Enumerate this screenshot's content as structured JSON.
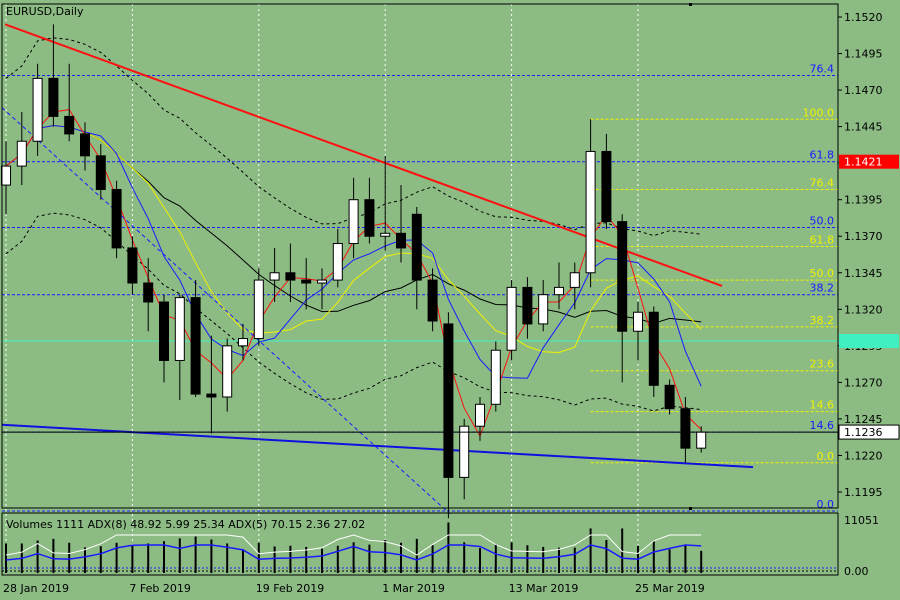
{
  "chart_data": {
    "type": "candlestick",
    "title": "EURUSD,Daily",
    "colors": {
      "background": "#8cbc84",
      "bull_body": "#ffffff",
      "bear_body": "#000000",
      "fib_blue": "#1a1aff",
      "fib_yellow": "#f0f000",
      "trendline_red": "#ff1010",
      "trendline_blue": "#1010e0",
      "ma_black": "#000000",
      "ma_yellow": "#f0f000",
      "ma_blue": "#1a1aff",
      "ma_red": "#ff1010",
      "price_marker_red": "#ff0000",
      "price_marker_cyan": "#40f0c0"
    },
    "y_axis": {
      "range": [
        1.1175,
        1.153
      ],
      "ticks": [
        "1.1520",
        "1.1495",
        "1.1470",
        "1.1445",
        "1.1420",
        "1.1395",
        "1.1370",
        "1.1345",
        "1.1320",
        "1.1295",
        "1.1270",
        "1.1245",
        "1.1220",
        "1.1195"
      ]
    },
    "x_axis": {
      "labels": [
        "28 Jan 2019",
        "7 Feb 2019",
        "19 Feb 2019",
        "1 Mar 2019",
        "13 Mar 2019",
        "25 Mar 2019"
      ]
    },
    "candles": [
      {
        "date": "28 Jan 2019",
        "o": 1.1405,
        "h": 1.1435,
        "l": 1.1385,
        "c": 1.1418
      },
      {
        "date": "29 Jan 2019",
        "o": 1.1418,
        "h": 1.1455,
        "l": 1.1405,
        "c": 1.1435
      },
      {
        "date": "30 Jan 2019",
        "o": 1.1435,
        "h": 1.1488,
        "l": 1.1425,
        "c": 1.1478
      },
      {
        "date": "31 Jan 2019",
        "o": 1.1478,
        "h": 1.1515,
        "l": 1.1445,
        "c": 1.1452
      },
      {
        "date": "1 Feb 2019",
        "o": 1.1452,
        "h": 1.1488,
        "l": 1.1435,
        "c": 1.144
      },
      {
        "date": "4 Feb 2019",
        "o": 1.144,
        "h": 1.1448,
        "l": 1.1415,
        "c": 1.1425
      },
      {
        "date": "5 Feb 2019",
        "o": 1.1425,
        "h": 1.1433,
        "l": 1.1395,
        "c": 1.1402
      },
      {
        "date": "6 Feb 2019",
        "o": 1.1402,
        "h": 1.1408,
        "l": 1.1355,
        "c": 1.1362
      },
      {
        "date": "7 Feb 2019",
        "o": 1.1362,
        "h": 1.137,
        "l": 1.133,
        "c": 1.1338
      },
      {
        "date": "8 Feb 2019",
        "o": 1.1338,
        "h": 1.1355,
        "l": 1.1305,
        "c": 1.1325
      },
      {
        "date": "11 Feb 2019",
        "o": 1.1325,
        "h": 1.133,
        "l": 1.127,
        "c": 1.1285
      },
      {
        "date": "12 Feb 2019",
        "o": 1.1285,
        "h": 1.133,
        "l": 1.1258,
        "c": 1.1328
      },
      {
        "date": "13 Feb 2019",
        "o": 1.1328,
        "h": 1.134,
        "l": 1.126,
        "c": 1.1262
      },
      {
        "date": "14 Feb 2019",
        "o": 1.1262,
        "h": 1.1302,
        "l": 1.1235,
        "c": 1.126
      },
      {
        "date": "15 Feb 2019",
        "o": 1.126,
        "h": 1.13,
        "l": 1.125,
        "c": 1.1295
      },
      {
        "date": "18 Feb 2019",
        "o": 1.1295,
        "h": 1.131,
        "l": 1.1285,
        "c": 1.13
      },
      {
        "date": "19 Feb 2019",
        "o": 1.13,
        "h": 1.1348,
        "l": 1.1295,
        "c": 1.134
      },
      {
        "date": "20 Feb 2019",
        "o": 1.134,
        "h": 1.1362,
        "l": 1.1325,
        "c": 1.1345
      },
      {
        "date": "21 Feb 2019",
        "o": 1.1345,
        "h": 1.1365,
        "l": 1.1325,
        "c": 1.134
      },
      {
        "date": "22 Feb 2019",
        "o": 1.134,
        "h": 1.1355,
        "l": 1.132,
        "c": 1.1338
      },
      {
        "date": "25 Feb 2019",
        "o": 1.1338,
        "h": 1.1348,
        "l": 1.132,
        "c": 1.134
      },
      {
        "date": "26 Feb 2019",
        "o": 1.134,
        "h": 1.1375,
        "l": 1.1335,
        "c": 1.1365
      },
      {
        "date": "27 Feb 2019",
        "o": 1.1365,
        "h": 1.141,
        "l": 1.1355,
        "c": 1.1395
      },
      {
        "date": "28 Feb 2019",
        "o": 1.1395,
        "h": 1.141,
        "l": 1.1365,
        "c": 1.137
      },
      {
        "date": "1 Mar 2019",
        "o": 1.137,
        "h": 1.1425,
        "l": 1.136,
        "c": 1.1372
      },
      {
        "date": "4 Mar 2019",
        "o": 1.1372,
        "h": 1.1405,
        "l": 1.1352,
        "c": 1.1362
      },
      {
        "date": "5 Mar 2019",
        "o": 1.1385,
        "h": 1.139,
        "l": 1.132,
        "c": 1.134
      },
      {
        "date": "6 Mar 2019",
        "o": 1.134,
        "h": 1.1348,
        "l": 1.1305,
        "c": 1.1312
      },
      {
        "date": "7 Mar 2019",
        "o": 1.131,
        "h": 1.1318,
        "l": 1.1177,
        "c": 1.1205
      },
      {
        "date": "8 Mar 2019",
        "o": 1.1205,
        "h": 1.1245,
        "l": 1.119,
        "c": 1.124
      },
      {
        "date": "11 Mar 2019",
        "o": 1.124,
        "h": 1.126,
        "l": 1.123,
        "c": 1.1255
      },
      {
        "date": "12 Mar 2019",
        "o": 1.1255,
        "h": 1.1298,
        "l": 1.125,
        "c": 1.1292
      },
      {
        "date": "13 Mar 2019",
        "o": 1.1292,
        "h": 1.134,
        "l": 1.1285,
        "c": 1.1335
      },
      {
        "date": "14 Mar 2019",
        "o": 1.1335,
        "h": 1.1342,
        "l": 1.13,
        "c": 1.131
      },
      {
        "date": "15 Mar 2019",
        "o": 1.131,
        "h": 1.134,
        "l": 1.1305,
        "c": 1.133
      },
      {
        "date": "18 Mar 2019",
        "o": 1.133,
        "h": 1.1352,
        "l": 1.132,
        "c": 1.1335
      },
      {
        "date": "19 Mar 2019",
        "o": 1.1335,
        "h": 1.1352,
        "l": 1.132,
        "c": 1.1345
      },
      {
        "date": "20 Mar 2019",
        "o": 1.1345,
        "h": 1.145,
        "l": 1.1335,
        "c": 1.1428
      },
      {
        "date": "21 Mar 2019",
        "o": 1.1428,
        "h": 1.144,
        "l": 1.1375,
        "c": 1.138
      },
      {
        "date": "22 Mar 2019",
        "o": 1.138,
        "h": 1.1385,
        "l": 1.127,
        "c": 1.1305
      },
      {
        "date": "25 Mar 2019",
        "o": 1.1305,
        "h": 1.1325,
        "l": 1.1285,
        "c": 1.1318
      },
      {
        "date": "26 Mar 2019",
        "o": 1.1318,
        "h": 1.1322,
        "l": 1.126,
        "c": 1.1268
      },
      {
        "date": "27 Mar 2019",
        "o": 1.1268,
        "h": 1.1272,
        "l": 1.1248,
        "c": 1.1252
      },
      {
        "date": "28 Mar 2019",
        "o": 1.1252,
        "h": 1.126,
        "l": 1.1215,
        "c": 1.1225
      },
      {
        "date": "29 Mar 2019",
        "o": 1.1225,
        "h": 1.124,
        "l": 1.1222,
        "c": 1.1236
      }
    ],
    "current_price": "1.1236",
    "highlight_price": "1.1421",
    "fib_blue": [
      {
        "label": "76.4",
        "price": 1.148
      },
      {
        "label": "61.8",
        "price": 1.1421
      },
      {
        "label": "50.0",
        "price": 1.1376
      },
      {
        "label": "38.2",
        "price": 1.133
      },
      {
        "label": "14.6",
        "price": 1.1236
      },
      {
        "label": "0.0",
        "price": 1.1182
      }
    ],
    "fib_yellow": [
      {
        "label": "100.0",
        "price": 1.145
      },
      {
        "label": "76.4",
        "price": 1.1402
      },
      {
        "label": "61.8",
        "price": 1.1363
      },
      {
        "label": "50.0",
        "price": 1.134
      },
      {
        "label": "38.2",
        "price": 1.1308
      },
      {
        "label": "23.6",
        "price": 1.1278
      },
      {
        "label": "14.6",
        "price": 1.125
      },
      {
        "label": "0.0",
        "price": 1.1215
      }
    ],
    "indicator": {
      "label": "Volumes 1111 ADX(8) 48.92 5.99 25.34 ADX(5) 70.15 2.36 27.02",
      "axis_top": "11051",
      "axis_bottom": "0.00"
    }
  }
}
